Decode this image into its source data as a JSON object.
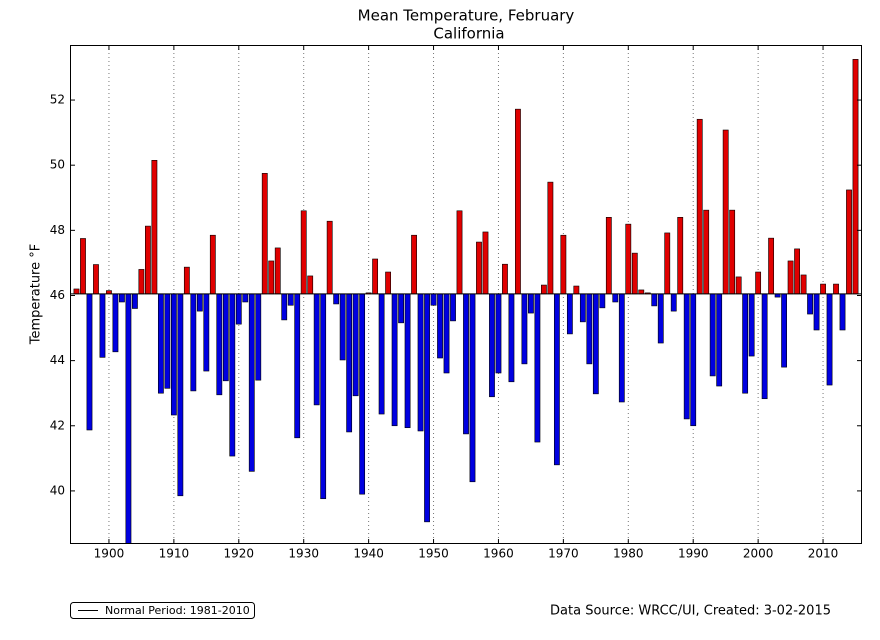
{
  "chart_data": {
    "type": "bar",
    "title": "Mean Temperature, February",
    "subtitle": "California",
    "ylabel": "Temperature °F",
    "legend_label": "Normal Period: 1981-2010",
    "source": "Data Source: WRCC/UI, Created: 3-02-2015",
    "normal": 46.05,
    "colors": {
      "above": "#e00000",
      "below": "#0000e0",
      "normal": "#000000"
    },
    "x": [
      1895,
      1896,
      1897,
      1898,
      1899,
      1900,
      1901,
      1902,
      1903,
      1904,
      1905,
      1906,
      1907,
      1908,
      1909,
      1910,
      1911,
      1912,
      1913,
      1914,
      1915,
      1916,
      1917,
      1918,
      1919,
      1920,
      1921,
      1922,
      1923,
      1924,
      1925,
      1926,
      1927,
      1928,
      1929,
      1930,
      1931,
      1932,
      1933,
      1934,
      1935,
      1936,
      1937,
      1938,
      1939,
      1940,
      1941,
      1942,
      1943,
      1944,
      1945,
      1946,
      1947,
      1948,
      1949,
      1950,
      1951,
      1952,
      1953,
      1954,
      1955,
      1956,
      1957,
      1958,
      1959,
      1960,
      1961,
      1962,
      1963,
      1964,
      1965,
      1966,
      1967,
      1968,
      1969,
      1970,
      1971,
      1972,
      1973,
      1974,
      1975,
      1976,
      1977,
      1978,
      1979,
      1980,
      1981,
      1982,
      1983,
      1984,
      1985,
      1986,
      1987,
      1988,
      1989,
      1990,
      1991,
      1992,
      1993,
      1994,
      1995,
      1996,
      1997,
      1998,
      1999,
      2000,
      2001,
      2002,
      2003,
      2004,
      2005,
      2006,
      2007,
      2008,
      2009,
      2010,
      2011,
      2012,
      2013,
      2014,
      2015
    ],
    "values": [
      46.2,
      47.75,
      41.87,
      46.95,
      44.1,
      46.15,
      44.27,
      45.8,
      38.2,
      45.6,
      46.8,
      48.13,
      50.15,
      43.0,
      43.15,
      42.33,
      39.85,
      46.87,
      43.07,
      45.52,
      43.68,
      47.85,
      42.95,
      43.38,
      41.07,
      45.12,
      45.8,
      40.6,
      43.4,
      49.75,
      47.06,
      47.46,
      45.25,
      45.7,
      41.63,
      48.6,
      46.6,
      42.64,
      39.76,
      48.28,
      45.74,
      44.02,
      41.81,
      42.92,
      39.9,
      46.08,
      47.12,
      42.36,
      46.72,
      42.0,
      45.16,
      41.94,
      47.85,
      41.84,
      39.05,
      45.7,
      44.08,
      43.62,
      45.22,
      48.6,
      41.75,
      40.28,
      47.64,
      47.95,
      42.89,
      43.62,
      46.96,
      43.35,
      51.72,
      43.9,
      45.46,
      41.5,
      46.32,
      49.48,
      40.8,
      47.85,
      44.82,
      46.29,
      45.19,
      43.9,
      42.98,
      45.62,
      48.4,
      45.8,
      42.73,
      48.19,
      47.3,
      46.17,
      46.08,
      45.68,
      44.54,
      47.92,
      45.52,
      48.4,
      42.21,
      42.0,
      51.41,
      48.62,
      43.53,
      43.22,
      51.08,
      48.62,
      46.57,
      43.0,
      44.14,
      46.72,
      42.83,
      47.76,
      45.95,
      43.8,
      47.06,
      47.43,
      46.63,
      45.43,
      44.94,
      46.35,
      43.25,
      46.35,
      44.94,
      49.24,
      53.25
    ],
    "xlim": [
      1894,
      2016
    ],
    "ylim": [
      38.37,
      53.69
    ],
    "xticks": [
      1900,
      1910,
      1920,
      1930,
      1940,
      1950,
      1960,
      1970,
      1980,
      1990,
      2000,
      2010
    ],
    "yticks": [
      40,
      42,
      44,
      46,
      48,
      50,
      52
    ],
    "grid": "x"
  }
}
